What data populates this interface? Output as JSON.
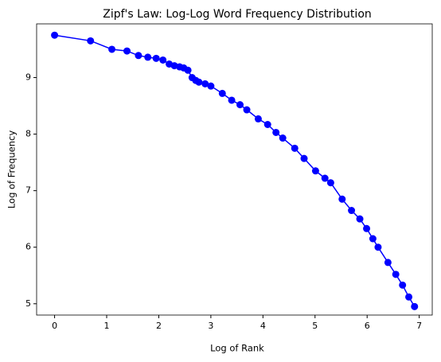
{
  "chart_data": {
    "type": "line",
    "title": "Zipf's Law: Log-Log Word Frequency Distribution",
    "xlabel": "Log of Rank",
    "ylabel": "Log of Frequency",
    "x": [
      0,
      0.69,
      1.1,
      1.39,
      1.61,
      1.79,
      1.95,
      2.08,
      2.2,
      2.3,
      2.4,
      2.48,
      2.56,
      2.64,
      2.71,
      2.77,
      2.89,
      3.0,
      3.22,
      3.4,
      3.56,
      3.69,
      3.91,
      4.09,
      4.25,
      4.38,
      4.61,
      4.79,
      5.01,
      5.19,
      5.3,
      5.52,
      5.7,
      5.86,
      5.99,
      6.11,
      6.21,
      6.4,
      6.55,
      6.68,
      6.8,
      6.91
    ],
    "series": [
      {
        "name": "Log of Frequency",
        "color": "#0000ff",
        "values": [
          9.75,
          9.65,
          9.5,
          9.47,
          9.39,
          9.36,
          9.34,
          9.31,
          9.24,
          9.21,
          9.19,
          9.17,
          9.13,
          9.0,
          8.95,
          8.92,
          8.89,
          8.85,
          8.72,
          8.6,
          8.52,
          8.43,
          8.27,
          8.17,
          8.03,
          7.93,
          7.75,
          7.57,
          7.35,
          7.22,
          7.14,
          6.85,
          6.65,
          6.5,
          6.33,
          6.15,
          6.0,
          5.73,
          5.52,
          5.33,
          5.12,
          4.95
        ]
      }
    ],
    "xlim": [
      -0.345,
      7.25
    ],
    "ylim": [
      4.8,
      9.95
    ],
    "xticks": [
      0,
      1,
      2,
      3,
      4,
      5,
      6,
      7
    ],
    "yticks": [
      5,
      6,
      7,
      8,
      9
    ],
    "grid": false
  }
}
